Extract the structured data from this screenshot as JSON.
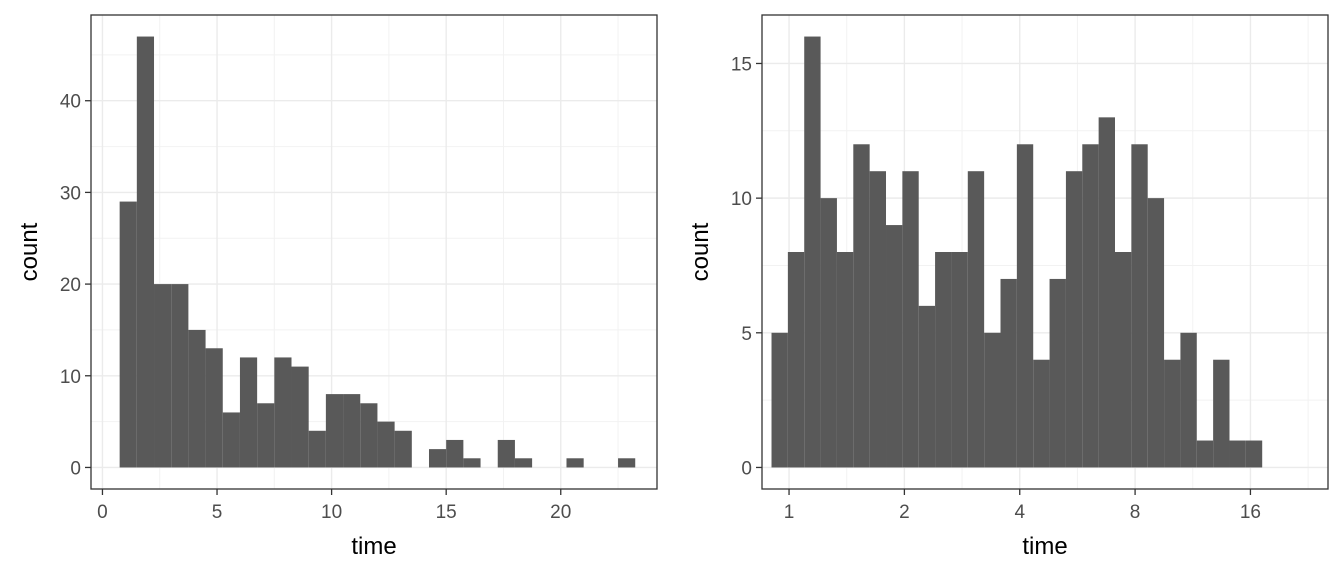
{
  "chart_data": [
    {
      "type": "bar",
      "subtype": "histogram",
      "xlabel": "time",
      "ylabel": "count",
      "x_scale": "linear",
      "xlim": [
        -0.5,
        24.2
      ],
      "ylim": [
        -2.35,
        49.35
      ],
      "x_ticks": [
        0,
        5,
        10,
        15,
        20
      ],
      "x_tick_labels": [
        "0",
        "5",
        "10",
        "15",
        "20"
      ],
      "y_ticks": [
        0,
        10,
        20,
        30,
        40
      ],
      "y_tick_labels": [
        "0",
        "10",
        "20",
        "30",
        "40"
      ],
      "grid": true,
      "bar_color": "#595959",
      "bin_starts": [
        0.75,
        1.5,
        2.25,
        3.0,
        3.75,
        4.5,
        5.25,
        6.0,
        6.75,
        7.5,
        8.25,
        9.0,
        9.75,
        10.5,
        11.25,
        12.0,
        12.75,
        13.5,
        14.25,
        15.0,
        15.75,
        16.5,
        17.25,
        18.0,
        18.75,
        19.5,
        20.25,
        21.0,
        21.75,
        22.5
      ],
      "bin_width": 0.75,
      "values": [
        29,
        47,
        20,
        20,
        15,
        13,
        6,
        12,
        7,
        12,
        11,
        4,
        8,
        8,
        7,
        5,
        4,
        0,
        2,
        3,
        1,
        0,
        3,
        1,
        0,
        0,
        1,
        0,
        0,
        1
      ]
    },
    {
      "type": "bar",
      "subtype": "histogram",
      "xlabel": "time",
      "ylabel": "count",
      "x_scale": "log2",
      "xlim": [
        0.85,
        25.5
      ],
      "ylim": [
        -0.8,
        16.8
      ],
      "x_ticks": [
        1,
        2,
        4,
        8,
        16
      ],
      "x_tick_labels": [
        "1",
        "2",
        "4",
        "8",
        "16"
      ],
      "y_ticks": [
        0,
        5,
        10,
        15
      ],
      "y_tick_labels": [
        "0",
        "5",
        "10",
        "15"
      ],
      "grid": true,
      "bar_color": "#595959",
      "bin_start": 0.9,
      "bin_log2_width": 0.1418,
      "values": [
        5,
        8,
        16,
        10,
        8,
        12,
        11,
        9,
        11,
        6,
        8,
        8,
        11,
        5,
        7,
        12,
        4,
        7,
        11,
        12,
        13,
        8,
        12,
        10,
        4,
        5,
        1,
        4,
        1,
        1
      ]
    }
  ]
}
